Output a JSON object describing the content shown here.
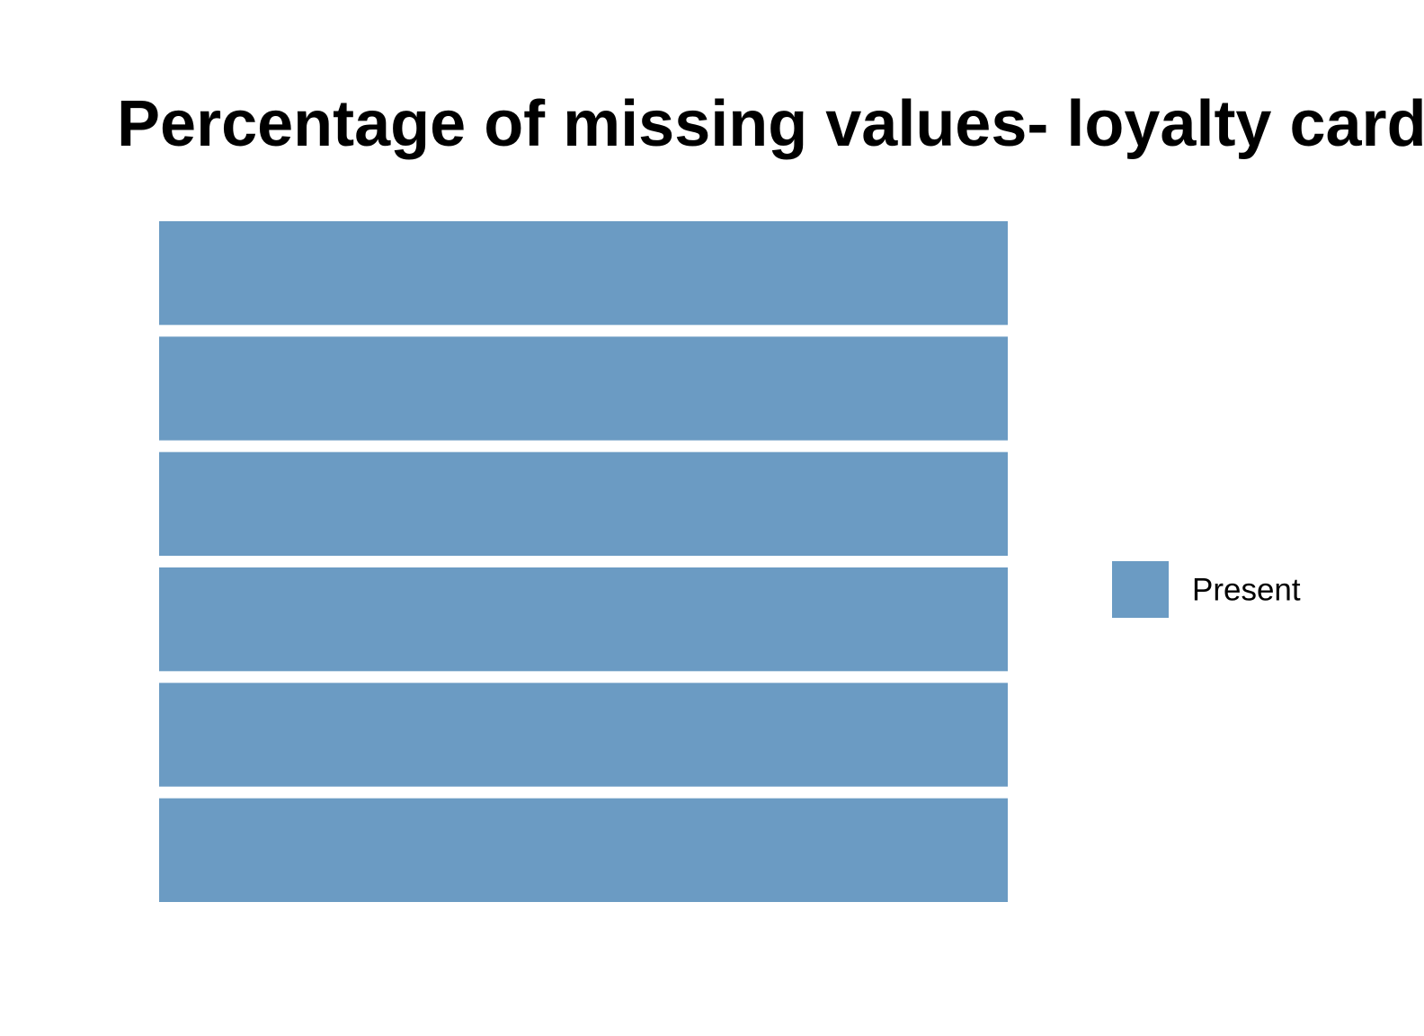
{
  "chart_data": {
    "type": "bar",
    "orientation": "horizontal",
    "stacked": true,
    "title": "Percentage of missing values- loyalty card",
    "xlabel": "",
    "ylabel": "",
    "categories": [
      "",
      "",
      "",
      "",
      "",
      ""
    ],
    "series": [
      {
        "name": "Present",
        "color": "#6b9bc3",
        "values": [
          100,
          100,
          100,
          100,
          100,
          100
        ]
      }
    ],
    "xlim": [
      0,
      100
    ],
    "grid": false,
    "axes_visible": false,
    "legend": {
      "position": "right",
      "entries": [
        "Present"
      ]
    }
  }
}
